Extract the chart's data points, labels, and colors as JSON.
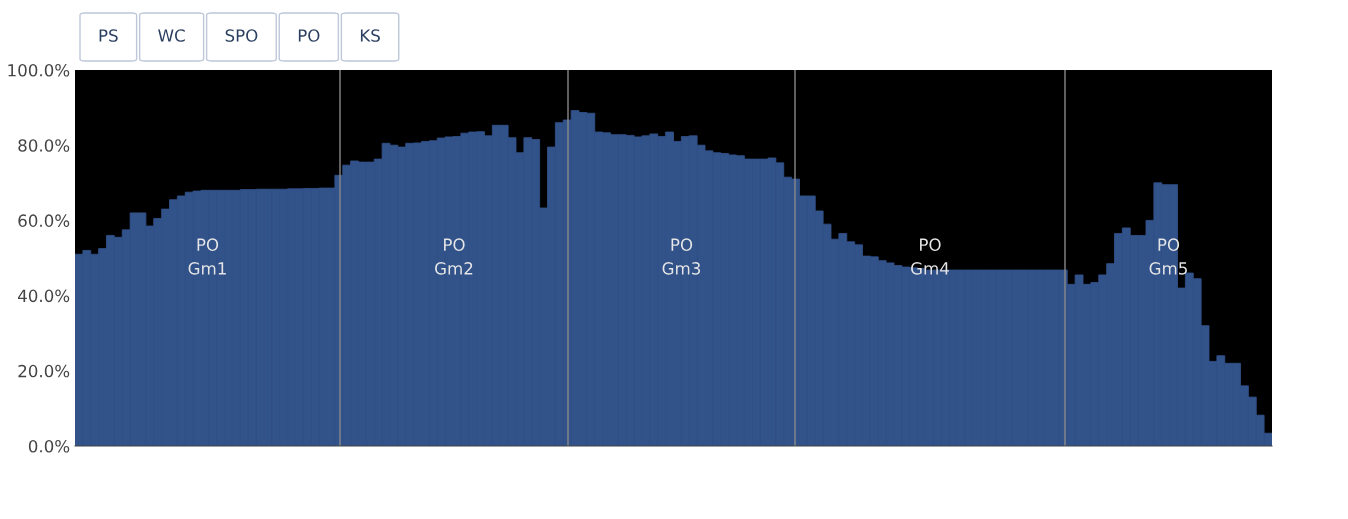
{
  "chart_data": {
    "type": "bar",
    "categories": [
      null,
      null,
      null,
      null,
      null,
      null,
      null,
      null,
      null,
      null,
      null,
      null,
      null,
      null,
      null,
      null,
      null,
      null,
      null,
      null,
      null,
      null,
      null,
      null,
      null,
      null,
      null,
      null,
      null,
      null,
      null,
      null,
      null,
      null,
      null,
      null,
      null,
      null,
      null,
      null,
      null,
      null,
      null,
      null,
      null,
      null,
      null,
      null,
      null,
      null,
      null,
      null,
      null,
      null,
      null,
      null,
      null,
      null,
      null,
      null,
      null,
      null,
      null,
      null,
      null,
      null,
      null,
      null,
      null,
      null,
      null,
      null,
      null,
      null,
      null,
      null,
      null,
      null,
      null,
      null,
      null,
      null,
      null,
      null,
      null,
      null,
      null,
      null,
      null,
      null,
      null,
      null,
      null,
      null,
      null,
      null,
      null,
      null,
      null,
      null,
      null,
      null,
      null,
      null,
      null,
      null,
      null,
      null,
      null,
      null,
      null,
      null,
      null,
      null,
      null,
      null,
      null,
      null,
      null,
      null,
      null,
      null,
      null,
      null,
      null,
      null,
      null,
      null,
      null,
      null,
      null,
      null,
      null,
      null,
      null,
      null,
      null,
      null,
      null,
      null,
      null,
      null,
      null,
      null,
      null,
      null,
      null,
      null,
      null,
      null,
      null,
      null
    ],
    "series": [
      {
        "color": "#32528a",
        "values": [
          51,
          52,
          51,
          52.5,
          56,
          55.5,
          57.5,
          62,
          62,
          58.5,
          60.5,
          63,
          65.5,
          66.5,
          67.5,
          67.8,
          68,
          68,
          68,
          68,
          68,
          68.2,
          68.2,
          68.3,
          68.3,
          68.3,
          68.3,
          68.4,
          68.4,
          68.5,
          68.5,
          68.6,
          68.6,
          72,
          74.7,
          75.8,
          75.5,
          75.5,
          76.3,
          80.5,
          80,
          79.5,
          80.5,
          80.6,
          81,
          81.2,
          81.9,
          82.2,
          82.3,
          83.2,
          83.5,
          83.6,
          82.5,
          85.3,
          85.3,
          82,
          78,
          82,
          81.5,
          63.3,
          79.5,
          86,
          86.7,
          89.2,
          88.7,
          88.5,
          83.5,
          83.3,
          82.8,
          82.8,
          82.6,
          82.2,
          82.5,
          83,
          82.3,
          83.5,
          81,
          82.3,
          82.5,
          80,
          78.5,
          78,
          77.8,
          77.4,
          77.2,
          76.3,
          76.3,
          76.3,
          76.6,
          75.3,
          71.5,
          71,
          66.5,
          66.5,
          62.5,
          59,
          55,
          56.5,
          54.3,
          53.5,
          50.5,
          50.3,
          49.3,
          48.7,
          48,
          47.6,
          47.4,
          47.2,
          46.8,
          46.8,
          46.8,
          46.8,
          46.8,
          46.8,
          46.8,
          46.8,
          46.8,
          46.8,
          46.8,
          46.8,
          46.8,
          46.8,
          46.8,
          46.8,
          46.8,
          46.8,
          43,
          45.5,
          43,
          43.5,
          45.5,
          48.5,
          56.5,
          58,
          56,
          56,
          60,
          70,
          69.5,
          69.5,
          42,
          46,
          44.5,
          32,
          22.5,
          24,
          22,
          22,
          16,
          13,
          8.2,
          3.4
        ]
      }
    ],
    "ylim": [
      0,
      100
    ],
    "yticks": [
      {
        "value": 0,
        "label": "0.0%"
      },
      {
        "value": 20,
        "label": "20.0%"
      },
      {
        "value": 40,
        "label": "40.0%"
      },
      {
        "value": 60,
        "label": "60.0%"
      },
      {
        "value": 80,
        "label": "80.0%"
      },
      {
        "value": 100,
        "label": "100.0%"
      }
    ],
    "annotations": [
      "PO\nGm1",
      "PO\nGm2",
      "PO\nGm3",
      "PO\nGm4",
      "PO\nGm5",
      "PS",
      "WC",
      "SPO",
      "PO",
      "KS"
    ],
    "grid": false,
    "tick_labels": "y"
  }
}
